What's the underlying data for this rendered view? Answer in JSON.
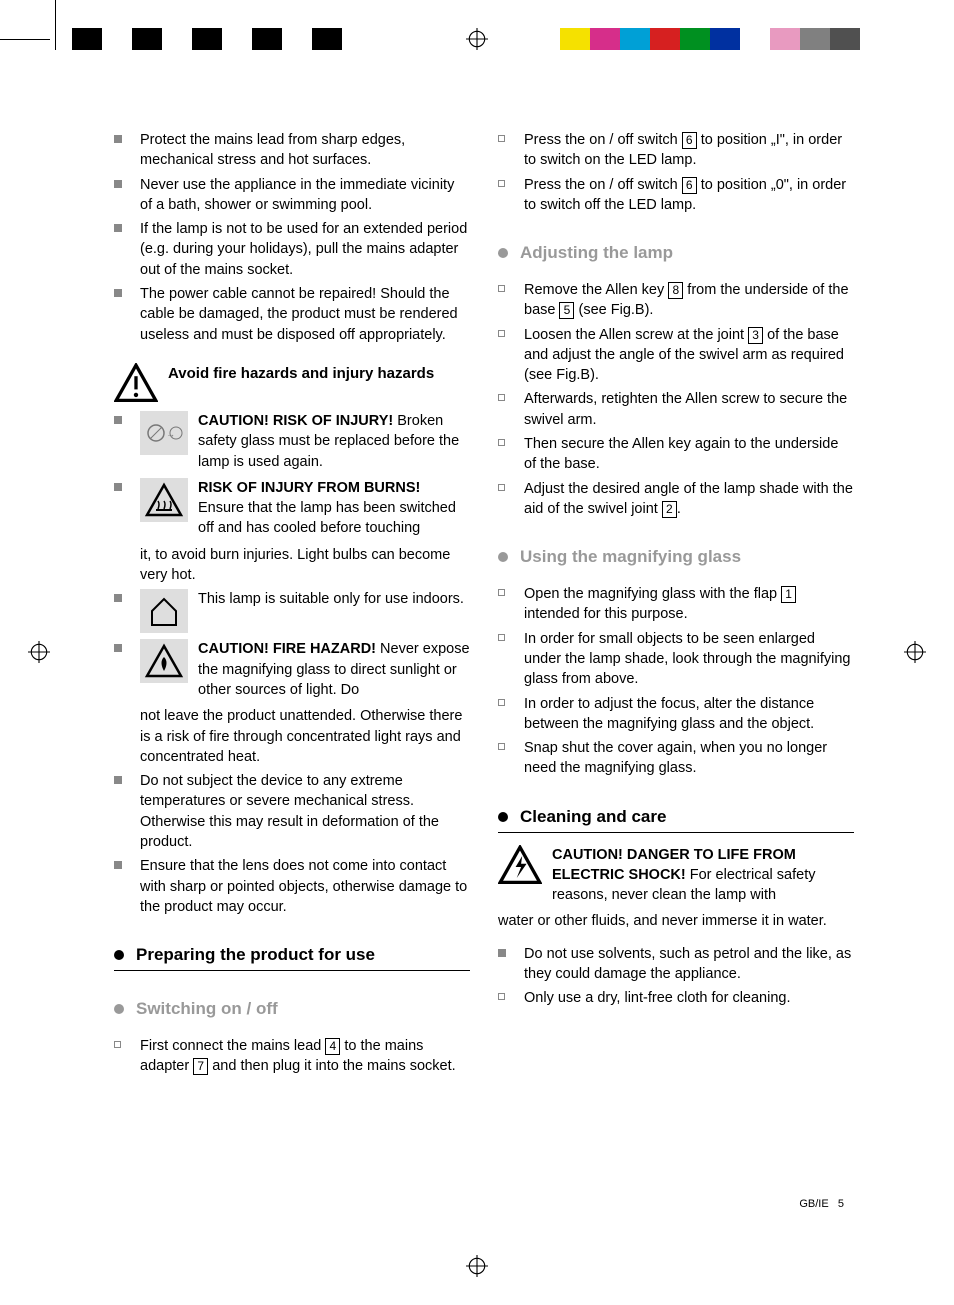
{
  "print_marks": {
    "left_swatches": [
      "#000000",
      "#ffffff",
      "#000000",
      "#ffffff",
      "#000000",
      "#ffffff",
      "#000000",
      "#ffffff",
      "#000000",
      "#ffffff"
    ],
    "right_swatches": [
      "#f5e100",
      "#d62e8a",
      "#00a0d6",
      "#d62020",
      "#009020",
      "#0030a0",
      "#ffffff",
      "#e89ac0",
      "#808080",
      "#505050"
    ]
  },
  "left_col": {
    "top_bullets": [
      "Protect the mains lead from sharp edges, mechanical stress and hot surfaces.",
      "Never use the appliance in the immediate vicinity of a bath, shower or swimming pool.",
      "If the lamp is not to be used for an extended period (e.g. during your holidays), pull the mains adapter out of the mains socket.",
      "The power cable cannot be repaired! Should the cable be damaged, the product must be rendered useless and must be disposed off appropriately."
    ],
    "avoid_title": "Avoid fire hazards and injury hazards",
    "caution_injury_bold": "CAUTION! RISK OF INJURY!",
    "caution_injury_text": "Broken safety glass must be replaced before the lamp is used again.",
    "risk_burns_bold": "RISK OF INJURY FROM BURNS!",
    "risk_burns_text": "Ensure that the lamp has been switched off and has cooled before touching",
    "burns_cont": "it, to avoid burn injuries. Light bulbs can become very hot.",
    "indoor_text": "This lamp is suitable only for use indoors.",
    "fire_bold": "CAUTION! FIRE HAZARD!",
    "fire_text": " Never expose the magnifying glass to direct sunlight or other sources of light. Do",
    "fire_cont": "not leave the product unattended. Otherwise there is a risk of fire through concentrated light rays and concentrated heat.",
    "bottom_bullets": [
      "Do not subject the device to any extreme temperatures or severe mechanical stress. Otherwise this may result in deformation of the product.",
      "Ensure that the lens does not come into contact with sharp or pointed objects, otherwise damage to the product may occur."
    ],
    "prep_head": "Preparing the product for use",
    "switch_head": "Switching on / off",
    "switch_item_a": "First connect the mains lead ",
    "switch_item_b": " to the mains adapter ",
    "switch_item_c": " and then plug it into the mains socket."
  },
  "right_col": {
    "press_on_a": "Press the on / off switch ",
    "press_on_b": " to position „I\", in order to switch on the LED lamp.",
    "press_off_a": "Press the on / off switch ",
    "press_off_b": " to position „0\", in order to switch off the LED lamp.",
    "adjust_head": "Adjusting the lamp",
    "adj1_a": "Remove the Allen key ",
    "adj1_b": " from the underside of the base ",
    "adj1_c": " (see Fig.B).",
    "adj2_a": "Loosen the Allen screw at the joint ",
    "adj2_b": " of the base and adjust the angle of the swivel arm as required (see Fig.B).",
    "adj3": "Afterwards, retighten the Allen screw to secure the swivel arm.",
    "adj4": "Then secure the Allen key again to the underside of the base.",
    "adj5_a": "Adjust the desired angle of the lamp shade with the aid of the swivel joint ",
    "adj5_b": ".",
    "mag_head": "Using the magnifying glass",
    "mag1_a": "Open the magnifying glass with the flap ",
    "mag1_b": " intended for this purpose.",
    "mag2": "In order for small objects to be seen enlarged under the lamp shade, look through the magnifying glass from above.",
    "mag3": "In order to adjust the focus, alter the distance between the magnifying glass and the object.",
    "mag4": "Snap shut the cover again, when you no longer need the magnifying glass.",
    "clean_head": "Cleaning and care",
    "clean_bold": "CAUTION! DANGER TO LIFE FROM ELECTRIC SHOCK!",
    "clean_text": " For electrical safety reasons, never clean the lamp with",
    "clean_cont": "water or other fluids, and never immerse it in water.",
    "clean_b1": "Do not use solvents, such as petrol and the like, as they could damage the appliance.",
    "clean_b2": "Only use a dry, lint-free cloth for cleaning."
  },
  "refs": {
    "r1": "1",
    "r2": "2",
    "r3": "3",
    "r4": "4",
    "r5": "5",
    "r6": "6",
    "r7": "7",
    "r8": "8"
  },
  "footer": {
    "lang": "GB/IE",
    "page": "5"
  }
}
